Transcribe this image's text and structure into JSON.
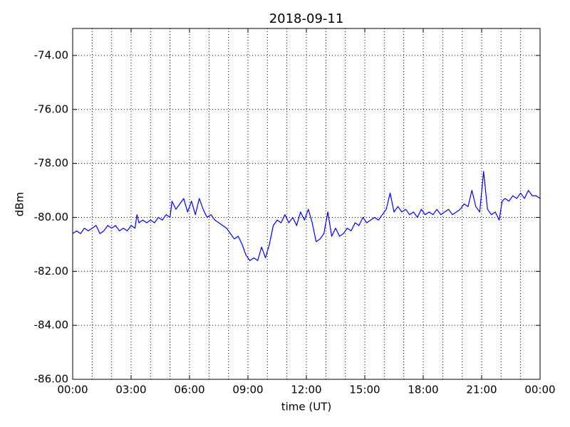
{
  "chart_data": {
    "type": "line",
    "title": "2018-09-11",
    "xlabel": "time (UT)",
    "ylabel": "dBm",
    "x": [
      0,
      0.2,
      0.4,
      0.6,
      0.8,
      1.0,
      1.2,
      1.4,
      1.6,
      1.8,
      2.0,
      2.2,
      2.4,
      2.6,
      2.8,
      3.0,
      3.2,
      3.3,
      3.4,
      3.6,
      3.8,
      4.0,
      4.2,
      4.4,
      4.6,
      4.8,
      5.0,
      5.1,
      5.3,
      5.5,
      5.7,
      5.9,
      6.1,
      6.3,
      6.5,
      6.7,
      6.9,
      7.1,
      7.3,
      7.5,
      7.7,
      7.9,
      8.1,
      8.3,
      8.5,
      8.7,
      8.9,
      9.1,
      9.3,
      9.5,
      9.7,
      9.9,
      10.1,
      10.3,
      10.5,
      10.7,
      10.9,
      11.1,
      11.3,
      11.5,
      11.7,
      11.9,
      12.1,
      12.3,
      12.5,
      12.7,
      12.9,
      13.1,
      13.3,
      13.5,
      13.7,
      13.9,
      14.1,
      14.3,
      14.5,
      14.7,
      14.9,
      15.1,
      15.3,
      15.5,
      15.7,
      15.9,
      16.1,
      16.3,
      16.5,
      16.7,
      16.9,
      17.1,
      17.3,
      17.5,
      17.7,
      17.9,
      18.1,
      18.3,
      18.5,
      18.7,
      18.9,
      19.1,
      19.3,
      19.5,
      19.7,
      19.9,
      20.1,
      20.3,
      20.5,
      20.7,
      20.9,
      21.1,
      21.3,
      21.5,
      21.7,
      21.9,
      22.05,
      22.2,
      22.4,
      22.6,
      22.8,
      23.0,
      23.2,
      23.4,
      23.6,
      23.8,
      24.0
    ],
    "series": [
      {
        "name": "dBm",
        "color": "#0000ff",
        "values": [
          -80.6,
          -80.5,
          -80.6,
          -80.4,
          -80.5,
          -80.4,
          -80.3,
          -80.6,
          -80.5,
          -80.3,
          -80.4,
          -80.3,
          -80.5,
          -80.4,
          -80.5,
          -80.3,
          -80.4,
          -79.9,
          -80.2,
          -80.1,
          -80.2,
          -80.1,
          -80.2,
          -80.0,
          -80.1,
          -79.9,
          -80.0,
          -79.4,
          -79.7,
          -79.5,
          -79.3,
          -79.8,
          -79.4,
          -79.9,
          -79.3,
          -79.7,
          -80.0,
          -79.9,
          -80.1,
          -80.2,
          -80.3,
          -80.4,
          -80.6,
          -80.8,
          -80.7,
          -81.0,
          -81.4,
          -81.6,
          -81.5,
          -81.6,
          -81.1,
          -81.5,
          -81.0,
          -80.3,
          -80.1,
          -80.2,
          -79.9,
          -80.2,
          -80.0,
          -80.3,
          -79.8,
          -80.1,
          -79.7,
          -80.2,
          -80.9,
          -80.8,
          -80.6,
          -79.8,
          -80.7,
          -80.4,
          -80.7,
          -80.6,
          -80.4,
          -80.5,
          -80.2,
          -80.3,
          -80.0,
          -80.2,
          -80.1,
          -80.0,
          -80.1,
          -79.9,
          -79.7,
          -79.1,
          -79.8,
          -79.6,
          -79.8,
          -79.7,
          -79.9,
          -79.8,
          -80.0,
          -79.7,
          -79.9,
          -79.8,
          -79.9,
          -79.7,
          -79.9,
          -79.8,
          -79.7,
          -79.9,
          -79.8,
          -79.7,
          -79.5,
          -79.6,
          -79.0,
          -79.6,
          -79.8,
          -78.3,
          -79.7,
          -79.9,
          -79.8,
          -80.1,
          -79.4,
          -79.3,
          -79.4,
          -79.2,
          -79.3,
          -79.1,
          -79.3,
          -79.0,
          -79.2,
          -79.2,
          -79.3
        ]
      }
    ],
    "xlim": [
      0,
      24
    ],
    "xticks": [
      {
        "value": 0,
        "label": "00:00"
      },
      {
        "value": 3,
        "label": "03:00"
      },
      {
        "value": 6,
        "label": "06:00"
      },
      {
        "value": 9,
        "label": "09:00"
      },
      {
        "value": 12,
        "label": "12:00"
      },
      {
        "value": 15,
        "label": "15:00"
      },
      {
        "value": 18,
        "label": "18:00"
      },
      {
        "value": 21,
        "label": "21:00"
      },
      {
        "value": 24,
        "label": "00:00"
      }
    ],
    "xminorticks": [
      1,
      2,
      3,
      4,
      5,
      6,
      7,
      8,
      9,
      10,
      11,
      12,
      13,
      14,
      15,
      16,
      17,
      18,
      19,
      20,
      21,
      22,
      23
    ],
    "ylim": [
      -86,
      -73
    ],
    "yticks": [
      {
        "value": -86,
        "label": "-86.00"
      },
      {
        "value": -84,
        "label": "-84.00"
      },
      {
        "value": -82,
        "label": "-82.00"
      },
      {
        "value": -80,
        "label": "-80.00"
      },
      {
        "value": -78,
        "label": "-78.00"
      },
      {
        "value": -76,
        "label": "-76.00"
      },
      {
        "value": -74,
        "label": "-74.00"
      }
    ],
    "grid": true
  }
}
